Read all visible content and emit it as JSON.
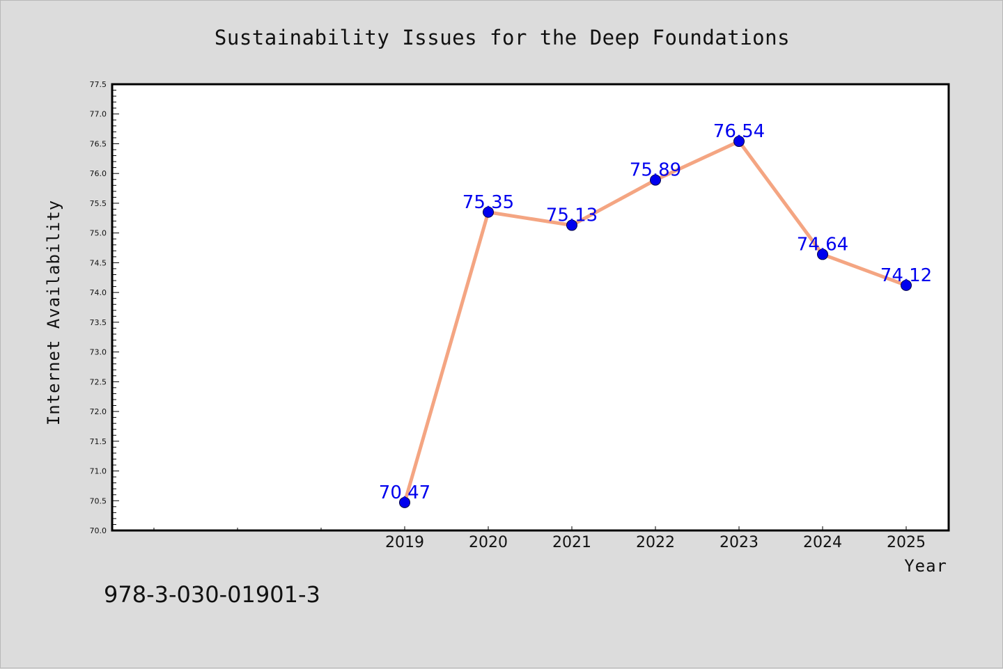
{
  "note": "978-3-030-01901-3",
  "colors": {
    "background": "#dcdcdc",
    "plot_background": "#ffffff",
    "line": "#f4a582",
    "marker": "#0000ee",
    "data_label": "#0000ee"
  },
  "chart_data": {
    "type": "line",
    "title": "Sustainability Issues for the Deep Foundations",
    "xlabel": "Year",
    "ylabel": "Internet Availability",
    "x": [
      "2019",
      "2020",
      "2021",
      "2022",
      "2023",
      "2024",
      "2025"
    ],
    "x_leading_empty_ticks": 3,
    "series": [
      {
        "values": [
          70.47,
          75.35,
          75.13,
          75.89,
          76.54,
          74.64,
          74.12
        ]
      }
    ],
    "data_labels": [
      "70.47",
      "75.35",
      "75.13",
      "75.89",
      "76.54",
      "74.64",
      "74.12"
    ],
    "ylim": [
      70.0,
      77.5
    ],
    "yticks": [
      "70.0",
      "70.5",
      "71.0",
      "71.5",
      "72.0",
      "72.5",
      "73.0",
      "73.5",
      "74.0",
      "74.5",
      "75.0",
      "75.5",
      "76.0",
      "76.5",
      "77.0",
      "77.5"
    ],
    "grid": false,
    "legend": "none"
  }
}
